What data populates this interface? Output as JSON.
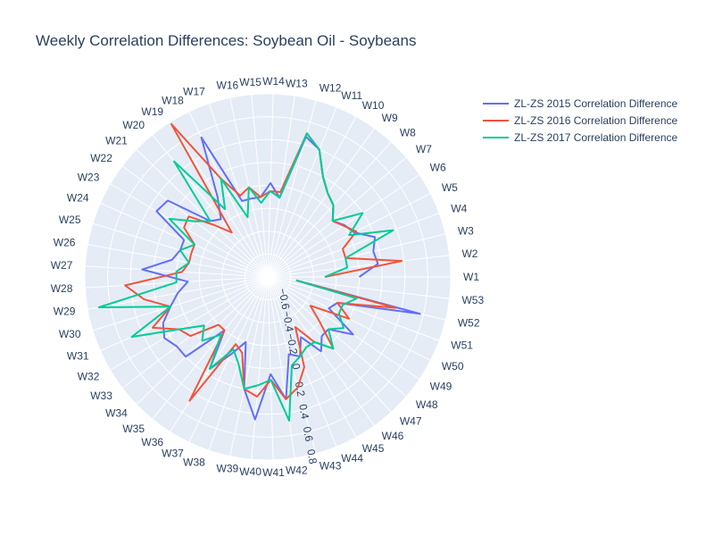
{
  "chart_data": {
    "type": "polar-line",
    "title": "Weekly Correlation Differences: Soybean Oil - Soybeans",
    "theta_labels": [
      "W1",
      "W2",
      "W3",
      "W4",
      "W5",
      "W6",
      "W7",
      "W8",
      "W9",
      "W10",
      "W11",
      "W12",
      "W13",
      "W14",
      "W15",
      "W16",
      "W17",
      "W18",
      "W19",
      "W20",
      "W21",
      "W22",
      "W23",
      "W24",
      "W25",
      "W26",
      "W27",
      "W28",
      "W29",
      "W30",
      "W31",
      "W32",
      "W33",
      "W34",
      "W35",
      "W36",
      "W37",
      "W38",
      "W39",
      "W40",
      "W41",
      "W42",
      "W43",
      "W44",
      "W45",
      "W46",
      "W47",
      "W48",
      "W49",
      "W50",
      "W51",
      "W52",
      "W53"
    ],
    "radial_range": [
      -0.8,
      0.8
    ],
    "radial_ticks": [
      -0.6,
      -0.4,
      -0.2,
      0,
      0.2,
      0.4,
      0.6,
      0.8
    ],
    "radial_tick_labels": [
      "−0.6",
      "−0.4",
      "−0.2",
      "0",
      "0.2",
      "0.4",
      "0.6",
      "0.8"
    ],
    "radial_axis_angle_deg": -80,
    "grid": true,
    "legend_position": "top-right",
    "series": [
      {
        "name": "ZL-ZS 2015 Correlation Difference",
        "color": "#636efa",
        "values": [
          0.0,
          0.17,
          0.15,
          0.2,
          0.05,
          0.01,
          -0.05,
          0.05,
          0.1,
          0.2,
          0.4,
          0.47,
          -0.1,
          0.02,
          -0.1,
          -0.1,
          -0.1,
          0.55,
          0.02,
          -0.15,
          -0.1,
          0.3,
          0.33,
          0.0,
          0.0,
          0.05,
          0.3,
          -0.1,
          0.0,
          0.09,
          0.2,
          0.25,
          0.2,
          0.2,
          -0.2,
          0.15,
          -0.05,
          -0.2,
          0.2,
          0.45,
          0.05,
          0.28,
          -0.1,
          -0.05,
          -0.2,
          0.0,
          -0.1,
          -0.1,
          0.1,
          -0.2,
          -0.15,
          0.57,
          -0.55
        ]
      },
      {
        "name": "ZL-ZS 2016 Correlation Difference",
        "color": "#ef553b",
        "values": [
          -0.3,
          0.38,
          -0.1,
          -0.1,
          0.07,
          0.0,
          -0.05,
          0.05,
          0.1,
          0.2,
          0.4,
          0.5,
          -0.05,
          -0.05,
          -0.1,
          0.0,
          -0.05,
          0.15,
          0.78,
          -0.3,
          -0.15,
          0.07,
          0.05,
          -0.1,
          -0.1,
          -0.1,
          -0.05,
          0.45,
          0.3,
          0.09,
          0.3,
          0.1,
          0.05,
          -0.2,
          -0.2,
          0.48,
          -0.15,
          -0.1,
          0.2,
          0.25,
          0.1,
          0.28,
          0.2,
          0.05,
          -0.3,
          -0.1,
          0.05,
          -0.2,
          -0.35,
          0.0,
          -0.15,
          0.35,
          -0.55
        ]
      },
      {
        "name": "ZL-ZS 2017 Correlation Difference",
        "color": "#00cc96",
        "values": [
          -0.3,
          -0.1,
          -0.1,
          0.37,
          0.0,
          0.2,
          -0.05,
          0.05,
          0.1,
          0.2,
          0.4,
          0.5,
          -0.1,
          -0.05,
          -0.15,
          0.0,
          -0.25,
          0.15,
          -0.1,
          0.5,
          -0.1,
          0.0,
          0.2,
          -0.1,
          0.0,
          -0.1,
          0.0,
          0.0,
          0.7,
          0.09,
          0.5,
          0.1,
          -0.1,
          0.0,
          -0.15,
          0.15,
          -0.1,
          0.0,
          0.2,
          0.15,
          0.1,
          0.47,
          0.0,
          -0.05,
          -0.1,
          -0.1,
          0.05,
          -0.1,
          0.0,
          -0.1,
          -0.1,
          0.0,
          -0.55
        ]
      }
    ]
  }
}
